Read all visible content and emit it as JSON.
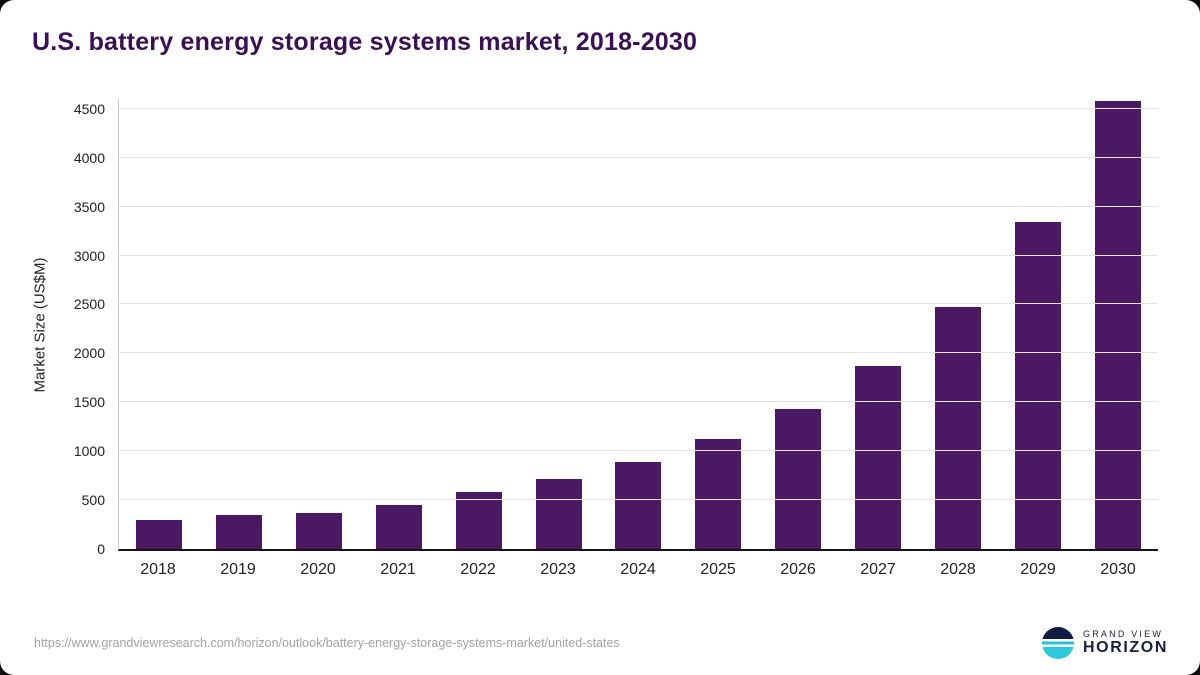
{
  "page": {
    "title": "U.S. battery energy storage systems market, 2018-2030",
    "source_url": "https://www.grandviewresearch.com/horizon/outlook/battery-energy-storage-systems-market/united-states",
    "logo": {
      "line1": "GRAND VIEW",
      "line2": "HORIZON"
    }
  },
  "colors": {
    "bar": "#4b1864",
    "title": "#3a0f55",
    "gridline": "#e3e3e3",
    "axis_text": "#222222",
    "url_text": "#a3a3a3",
    "logo_navy": "#16203f",
    "logo_cyan": "#24c0d8"
  },
  "chart_data": {
    "type": "bar",
    "title": "U.S. battery energy storage systems market, 2018-2030",
    "categories": [
      "2018",
      "2019",
      "2020",
      "2021",
      "2022",
      "2023",
      "2024",
      "2025",
      "2026",
      "2027",
      "2028",
      "2029",
      "2030"
    ],
    "values": [
      300,
      345,
      370,
      450,
      580,
      715,
      885,
      1120,
      1430,
      1870,
      2470,
      3340,
      4580
    ],
    "xlabel": "",
    "ylabel": "Market Size (US$M)",
    "ylim": [
      0,
      4600
    ],
    "yticks": [
      0,
      500,
      1000,
      1500,
      2000,
      2500,
      3000,
      3500,
      4000,
      4500
    ],
    "grid": true,
    "legend": false
  }
}
